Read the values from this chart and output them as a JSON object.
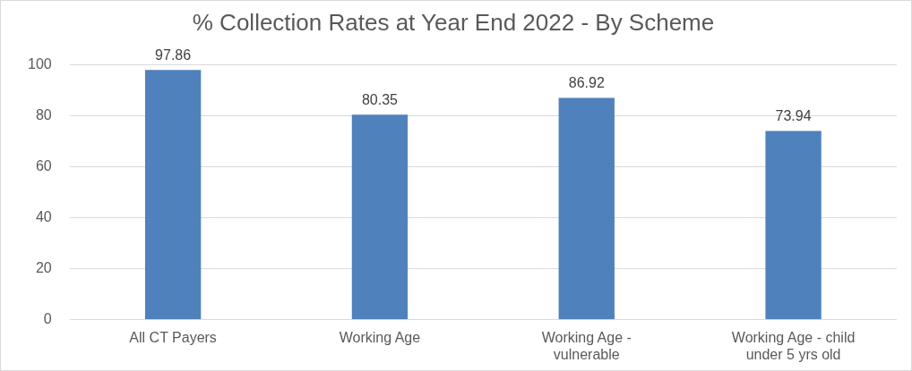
{
  "chart_data": {
    "type": "bar",
    "title": "% Collection Rates at Year End 2022 - By Scheme",
    "categories": [
      "All CT Payers",
      "Working Age",
      "Working Age - vulnerable",
      "Working Age - child under 5 yrs old"
    ],
    "values": [
      97.86,
      80.35,
      86.92,
      73.94
    ],
    "color": "#4f81bd",
    "ylim": [
      0,
      100
    ],
    "yticks": [
      0,
      20,
      40,
      60,
      80,
      100
    ],
    "grid": "y",
    "data_labels": true,
    "legend": false
  }
}
